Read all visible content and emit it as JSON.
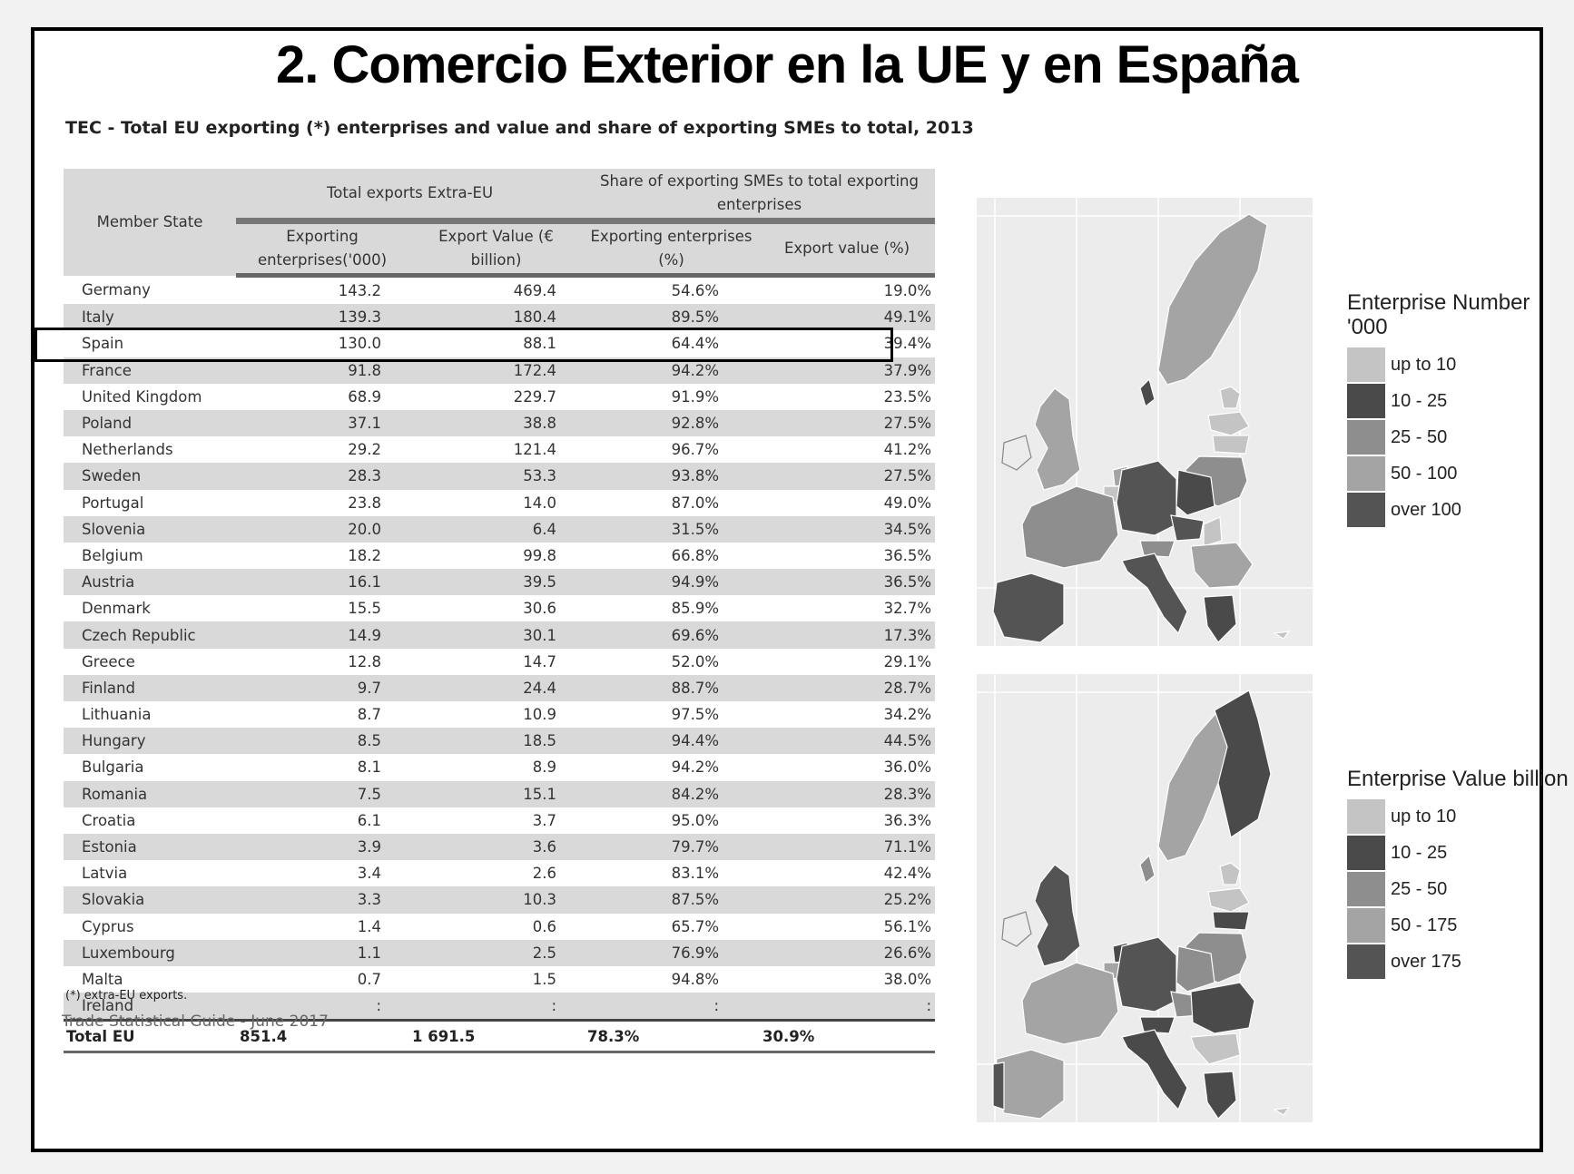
{
  "title": "2. Comercio Exterior en la UE y en España",
  "table": {
    "title": "TEC - Total EU exporting (*) enterprises and value and share of exporting SMEs to total, 2013",
    "header": {
      "member_state": "Member State",
      "group1": "Total exports Extra-EU",
      "group2": "Share of exporting SMEs to total exporting enterprises",
      "col1": "Exporting enterprises('000)",
      "col2": "Export Value (€ billion)",
      "col3": "Exporting enterprises (%)",
      "col4": "Export value (%)"
    },
    "rows": [
      [
        "Germany",
        "143.2",
        "469.4",
        "54.6%",
        "19.0%"
      ],
      [
        "Italy",
        "139.3",
        "180.4",
        "89.5%",
        "49.1%"
      ],
      [
        "Spain",
        "130.0",
        "88.1",
        "64.4%",
        "39.4%"
      ],
      [
        "France",
        "91.8",
        "172.4",
        "94.2%",
        "37.9%"
      ],
      [
        "United Kingdom",
        "68.9",
        "229.7",
        "91.9%",
        "23.5%"
      ],
      [
        "Poland",
        "37.1",
        "38.8",
        "92.8%",
        "27.5%"
      ],
      [
        "Netherlands",
        "29.2",
        "121.4",
        "96.7%",
        "41.2%"
      ],
      [
        "Sweden",
        "28.3",
        "53.3",
        "93.8%",
        "27.5%"
      ],
      [
        "Portugal",
        "23.8",
        "14.0",
        "87.0%",
        "49.0%"
      ],
      [
        "Slovenia",
        "20.0",
        "6.4",
        "31.5%",
        "34.5%"
      ],
      [
        "Belgium",
        "18.2",
        "99.8",
        "66.8%",
        "36.5%"
      ],
      [
        "Austria",
        "16.1",
        "39.5",
        "94.9%",
        "36.5%"
      ],
      [
        "Denmark",
        "15.5",
        "30.6",
        "85.9%",
        "32.7%"
      ],
      [
        "Czech Republic",
        "14.9",
        "30.1",
        "69.6%",
        "17.3%"
      ],
      [
        "Greece",
        "12.8",
        "14.7",
        "52.0%",
        "29.1%"
      ],
      [
        "Finland",
        "9.7",
        "24.4",
        "88.7%",
        "28.7%"
      ],
      [
        "Lithuania",
        "8.7",
        "10.9",
        "97.5%",
        "34.2%"
      ],
      [
        "Hungary",
        "8.5",
        "18.5",
        "94.4%",
        "44.5%"
      ],
      [
        "Bulgaria",
        "8.1",
        "8.9",
        "94.2%",
        "36.0%"
      ],
      [
        "Romania",
        "7.5",
        "15.1",
        "84.2%",
        "28.3%"
      ],
      [
        "Croatia",
        "6.1",
        "3.7",
        "95.0%",
        "36.3%"
      ],
      [
        "Estonia",
        "3.9",
        "3.6",
        "79.7%",
        "71.1%"
      ],
      [
        "Latvia",
        "3.4",
        "2.6",
        "83.1%",
        "42.4%"
      ],
      [
        "Slovakia",
        "3.3",
        "10.3",
        "87.5%",
        "25.2%"
      ],
      [
        "Cyprus",
        "1.4",
        "0.6",
        "65.7%",
        "56.1%"
      ],
      [
        "Luxembourg",
        "1.1",
        "2.5",
        "76.9%",
        "26.6%"
      ],
      [
        "Malta",
        "0.7",
        "1.5",
        "94.8%",
        "38.0%"
      ],
      [
        "Ireland",
        ":",
        ":",
        ":",
        ":"
      ]
    ],
    "total": [
      "Total EU",
      "851.4",
      "1 691.5",
      "78.3%",
      "30.9%"
    ],
    "highlighted_row": "Spain",
    "footnote": "(*) extra-EU exports.",
    "source": "Trade Statistical Guide - June 2017"
  },
  "map_number": {
    "legend_title": "Enterprise Number '000",
    "legend": [
      {
        "label": "up to 10",
        "color": "#c4c4c4"
      },
      {
        "label": "10 - 25",
        "color": "#4a4a4a"
      },
      {
        "label": "25 - 50",
        "color": "#8e8e8e"
      },
      {
        "label": "50 - 100",
        "color": "#a4a4a4"
      },
      {
        "label": "over 100",
        "color": "#545454"
      }
    ]
  },
  "map_value": {
    "legend_title": "Enterprise Value billion",
    "legend": [
      {
        "label": "up to 10",
        "color": "#c4c4c4"
      },
      {
        "label": "10 - 25",
        "color": "#4a4a4a"
      },
      {
        "label": "25 - 50",
        "color": "#8e8e8e"
      },
      {
        "label": "50 - 175",
        "color": "#a4a4a4"
      },
      {
        "label": "over 175",
        "color": "#545454"
      }
    ]
  }
}
